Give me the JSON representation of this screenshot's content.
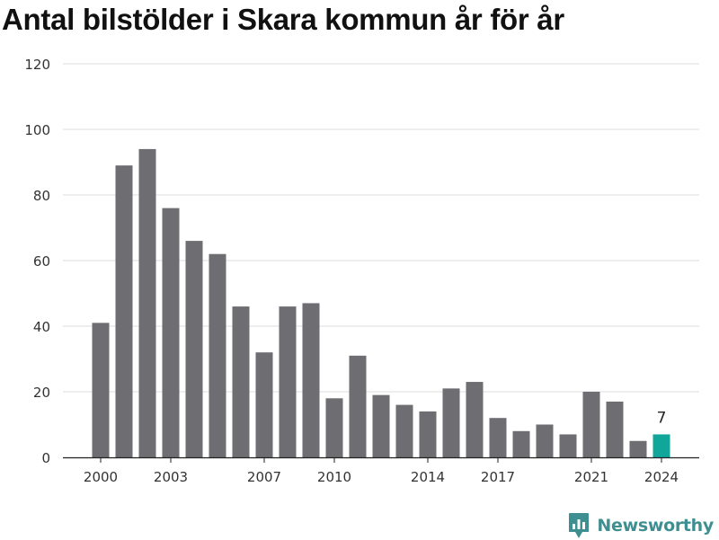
{
  "title": "Antal bilstölder i Skara kommun år för år",
  "brand": {
    "name": "Newsworthy",
    "icon": "newsworthy-logo-icon"
  },
  "colors": {
    "bar": "#6e6d72",
    "highlight": "#10a69a",
    "brand": "#3e8f91",
    "grid": "#dcdcdc",
    "axis": "#222222",
    "text": "#333333"
  },
  "chart_data": {
    "type": "bar",
    "title": "Antal bilstölder i Skara kommun år för år",
    "xlabel": "",
    "ylabel": "",
    "categories": [
      2000,
      2001,
      2002,
      2003,
      2004,
      2005,
      2006,
      2007,
      2008,
      2009,
      2010,
      2011,
      2012,
      2013,
      2014,
      2015,
      2016,
      2017,
      2018,
      2019,
      2020,
      2021,
      2022,
      2023,
      2024
    ],
    "values": [
      41,
      89,
      94,
      76,
      66,
      62,
      46,
      32,
      46,
      47,
      18,
      31,
      19,
      16,
      14,
      21,
      23,
      12,
      8,
      10,
      7,
      20,
      17,
      5,
      7
    ],
    "xticks": [
      2000,
      2003,
      2007,
      2010,
      2014,
      2017,
      2021,
      2024
    ],
    "yticks": [
      0,
      20,
      40,
      60,
      80,
      100,
      120
    ],
    "ylim": [
      0,
      120
    ],
    "highlight": {
      "category": 2024,
      "label": "7"
    },
    "grid": true,
    "legend": "none"
  }
}
